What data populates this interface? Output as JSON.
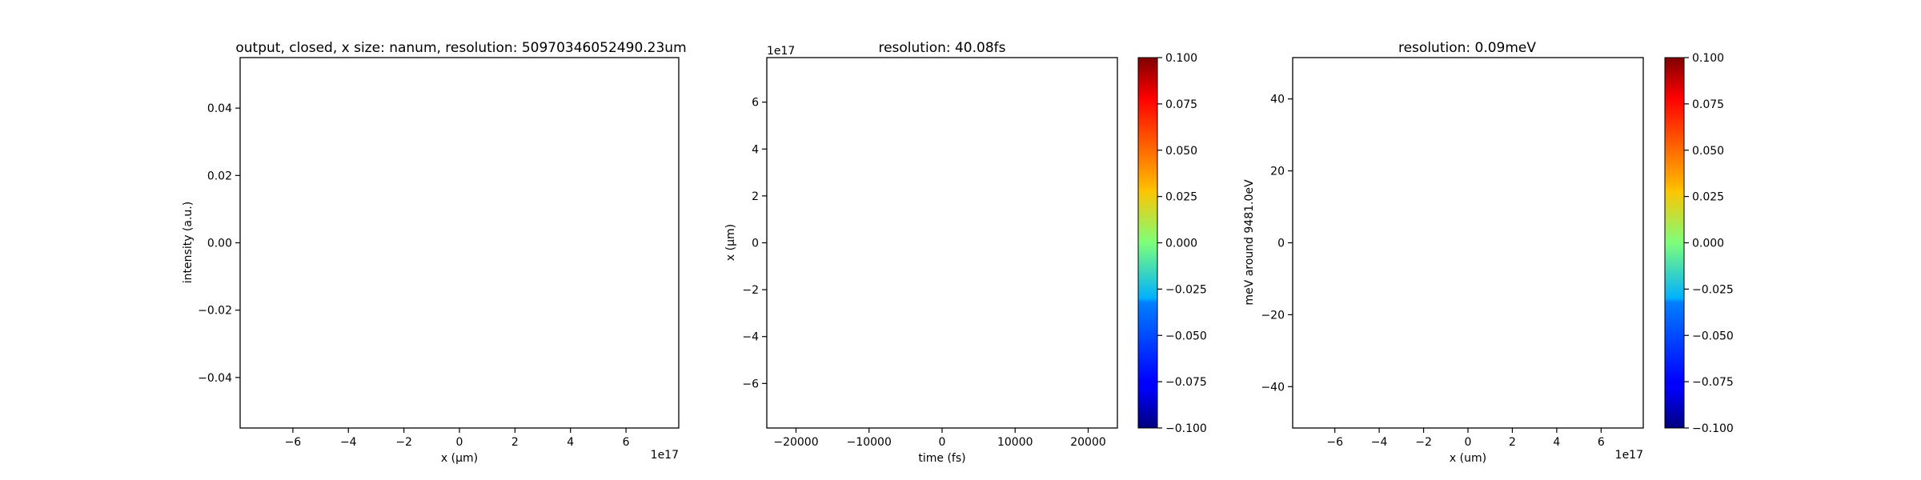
{
  "chart_data": [
    {
      "type": "line",
      "title": "output, closed, x size: nanum, resolution: 50970346052490.23um",
      "xlabel": "x (μm)",
      "ylabel": "intensity (a.u.)",
      "x_offset_text": "1e17",
      "xlim": [
        -7.9,
        7.9
      ],
      "ylim": [
        -0.055,
        0.055
      ],
      "xticks": [
        -6,
        -4,
        -2,
        0,
        2,
        4,
        6
      ],
      "xticklabels": [
        "−6",
        "−4",
        "−2",
        "0",
        "2",
        "4",
        "6"
      ],
      "yticks": [
        -0.04,
        -0.02,
        0.0,
        0.02,
        0.04
      ],
      "yticklabels": [
        "−0.04",
        "−0.02",
        "0.00",
        "0.02",
        "0.04"
      ],
      "series": [],
      "grid": false
    },
    {
      "type": "heatmap",
      "title": "resolution: 40.08fs",
      "xlabel": "time (fs)",
      "ylabel": "x (μm)",
      "y_offset_text": "1e17",
      "xlim": [
        -24000,
        24000
      ],
      "ylim": [
        -7.9,
        7.9
      ],
      "xticks": [
        -20000,
        -10000,
        0,
        10000,
        20000
      ],
      "xticklabels": [
        "−20000",
        "−10000",
        "0",
        "10000",
        "20000"
      ],
      "yticks": [
        -6,
        -4,
        -2,
        0,
        2,
        4,
        6
      ],
      "yticklabels": [
        "−6",
        "−4",
        "−2",
        "0",
        "2",
        "4",
        "6"
      ],
      "values": [],
      "colorbar": {
        "colormap": "jet",
        "range": [
          -0.1,
          0.1
        ],
        "ticks": [
          -0.1,
          -0.075,
          -0.05,
          -0.025,
          0.0,
          0.025,
          0.05,
          0.075,
          0.1
        ],
        "ticklabels": [
          "−0.100",
          "−0.075",
          "−0.050",
          "−0.025",
          "0.000",
          "0.025",
          "0.050",
          "0.075",
          "0.100"
        ]
      },
      "grid": false
    },
    {
      "type": "heatmap",
      "title": "resolution: 0.09meV",
      "xlabel": "x (um)",
      "ylabel": "meV around 9481.0eV",
      "x_offset_text": "1e17",
      "xlim": [
        -7.9,
        7.9
      ],
      "ylim": [
        -51.5,
        51.5
      ],
      "xticks": [
        -6,
        -4,
        -2,
        0,
        2,
        4,
        6
      ],
      "xticklabels": [
        "−6",
        "−4",
        "−2",
        "0",
        "2",
        "4",
        "6"
      ],
      "yticks": [
        -40,
        -20,
        0,
        20,
        40
      ],
      "yticklabels": [
        "−40",
        "−20",
        "0",
        "20",
        "40"
      ],
      "values": [],
      "colorbar": {
        "colormap": "jet",
        "range": [
          -0.1,
          0.1
        ],
        "ticks": [
          -0.1,
          -0.075,
          -0.05,
          -0.025,
          0.0,
          0.025,
          0.05,
          0.075,
          0.1
        ],
        "ticklabels": [
          "−0.100",
          "−0.075",
          "−0.050",
          "−0.025",
          "0.000",
          "0.025",
          "0.050",
          "0.075",
          "0.100"
        ]
      },
      "grid": false
    }
  ]
}
